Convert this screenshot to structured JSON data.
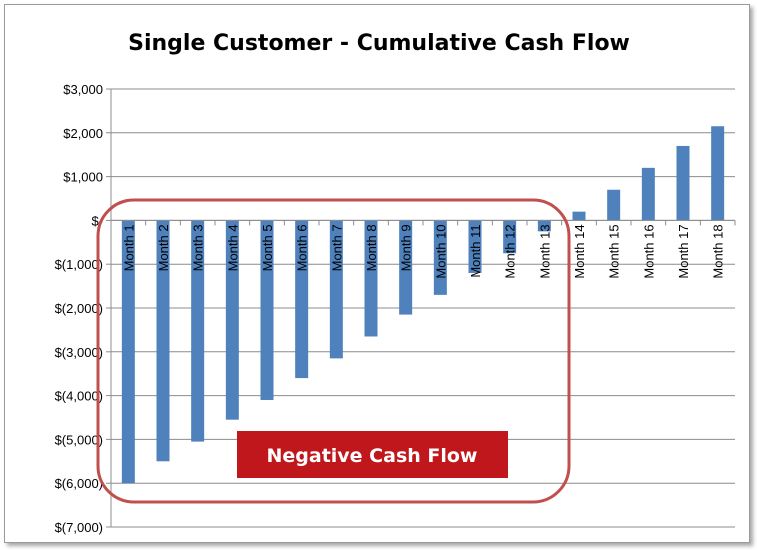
{
  "chart_data": {
    "type": "bar",
    "title": "Single Customer - Cumulative Cash Flow",
    "xlabel": "",
    "ylabel": "",
    "categories": [
      "Month 1",
      "Month 2",
      "Month 3",
      "Month 4",
      "Month 5",
      "Month 6",
      "Month 7",
      "Month 8",
      "Month 9",
      "Month 10",
      "Month 11",
      "Month 12",
      "Month 13",
      "Month 14",
      "Month 15",
      "Month 16",
      "Month 17",
      "Month 18"
    ],
    "values": [
      -6000,
      -5500,
      -5050,
      -4550,
      -4100,
      -3600,
      -3150,
      -2650,
      -2150,
      -1700,
      -1200,
      -750,
      -250,
      200,
      700,
      1200,
      1700,
      2150
    ],
    "ylim": [
      -7000,
      3000
    ],
    "yticks": [
      3000,
      2000,
      1000,
      0,
      -1000,
      -2000,
      -3000,
      -4000,
      -5000,
      -6000,
      -7000
    ],
    "ytick_labels": [
      "$3,000",
      "$2,000",
      "$1,000",
      "$-",
      "$(1,000)",
      "$(2,000)",
      "$(3,000)",
      "$(4,000)",
      "$(5,000)",
      "$(6,000)",
      "$(7,000)"
    ],
    "grid": true,
    "bar_color": "#4f81bd",
    "annotation": {
      "text": "Negative Cash Flow",
      "box_color": "#c0171c",
      "outline_color": "#c0504d"
    }
  }
}
